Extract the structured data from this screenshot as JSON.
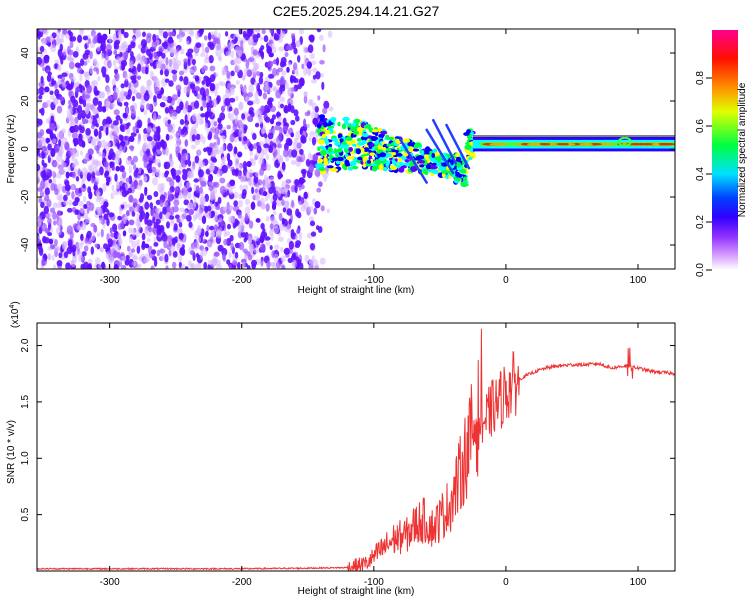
{
  "title": "C2E5.2025.294.14.21.G27",
  "chart_data": [
    {
      "type": "heatmap",
      "title": "C2E5.2025.294.14.21.G27",
      "xlabel": "Height of straight line (km)",
      "ylabel": "Frequency (Hz)",
      "xlim": [
        -355,
        128
      ],
      "ylim": [
        -50,
        50
      ],
      "xticks": [
        -300,
        -200,
        -100,
        0,
        100
      ],
      "yticks": [
        -40,
        -20,
        0,
        20,
        40
      ],
      "ridge": {
        "x_start": -145,
        "x_end": 128,
        "freq_center_hz": 2
      },
      "colorbar": {
        "label": "Normalized spectral amplitude",
        "range": [
          0,
          1
        ],
        "ticks": [
          0.0,
          0.2,
          0.4,
          0.6,
          0.8
        ],
        "colors": [
          "#ffffff",
          "#c060ff",
          "#6000ff",
          "#0000ff",
          "#00ffff",
          "#00ff40",
          "#ffff00",
          "#ff8000",
          "#ff0000",
          "#ff0080"
        ]
      }
    },
    {
      "type": "line",
      "xlabel": "Height of straight line (km)",
      "ylabel": "SNR (10 * v/v)",
      "scale_label": "(x10",
      "scale_exp": "4",
      "scale_close": ")",
      "xlim": [
        -355,
        128
      ],
      "ylim": [
        0,
        2.2
      ],
      "xticks": [
        -300,
        -200,
        -100,
        0,
        100
      ],
      "yticks": [
        0.5,
        1.0,
        1.5,
        2.0
      ],
      "ytick_labels": [
        "0.5",
        "1.0",
        "1.5",
        "2.0"
      ],
      "color": "#ee3333",
      "series": [
        {
          "name": "SNR",
          "x": [
            -355,
            -300,
            -250,
            -200,
            -150,
            -120,
            -105,
            -95,
            -85,
            -75,
            -68,
            -62,
            -55,
            -48,
            -42,
            -36,
            -30,
            -25,
            -20,
            -15,
            -10,
            -5,
            0,
            5,
            10,
            20,
            30,
            40,
            50,
            60,
            70,
            80,
            90,
            100,
            110,
            120,
            128
          ],
          "y": [
            0.02,
            0.02,
            0.02,
            0.02,
            0.025,
            0.03,
            0.07,
            0.18,
            0.28,
            0.32,
            0.42,
            0.45,
            0.38,
            0.5,
            0.6,
            0.8,
            1.05,
            1.25,
            1.4,
            1.35,
            1.45,
            1.5,
            1.6,
            1.65,
            1.7,
            1.76,
            1.8,
            1.82,
            1.83,
            1.83,
            1.84,
            1.8,
            1.82,
            1.8,
            1.77,
            1.76,
            1.75
          ]
        }
      ]
    }
  ]
}
